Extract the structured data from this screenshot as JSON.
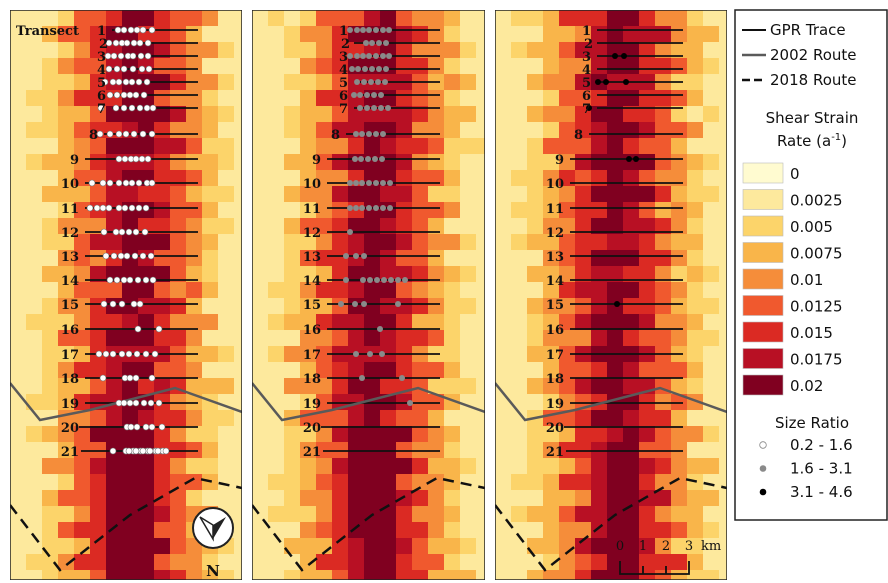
{
  "transect_prefix": "Transect",
  "transects": [
    "1",
    "2",
    "3",
    "4",
    "5",
    "6",
    "7",
    "8",
    "9",
    "10",
    "11",
    "12",
    "13",
    "14",
    "15",
    "16",
    "17",
    "18",
    "19",
    "20",
    "21"
  ],
  "legend": {
    "trace_label": "GPR Trace",
    "route2002_label": "2002 Route",
    "route2018_label": "2018 Route",
    "strain_title_line1": "Shear Strain",
    "strain_title_line2": "Rate (a",
    "strain_title_sup": "-1",
    "strain_title_close": ")",
    "strain_classes": [
      {
        "label": "0",
        "color": "#fffbd0"
      },
      {
        "label": "0.0025",
        "color": "#fde99d"
      },
      {
        "label": "0.005",
        "color": "#fcd46a"
      },
      {
        "label": "0.0075",
        "color": "#f9b54a"
      },
      {
        "label": "0.01",
        "color": "#f58d3a"
      },
      {
        "label": "0.0125",
        "color": "#f0592e"
      },
      {
        "label": "0.015",
        "color": "#db2a23"
      },
      {
        "label": "0.0175",
        "color": "#b81024"
      },
      {
        "label": "0.02",
        "color": "#800020"
      }
    ],
    "size_title": "Size Ratio",
    "size_classes": [
      {
        "label": "0.2 - 1.6",
        "color": "#ffffff"
      },
      {
        "label": "1.6 - 3.1",
        "color": "#8a8a8a"
      },
      {
        "label": "3.1 - 4.6",
        "color": "#000000"
      }
    ]
  },
  "north_label": "N",
  "scalebar": {
    "ticks": [
      "0",
      "1",
      "2",
      "3"
    ],
    "unit": "km"
  }
}
